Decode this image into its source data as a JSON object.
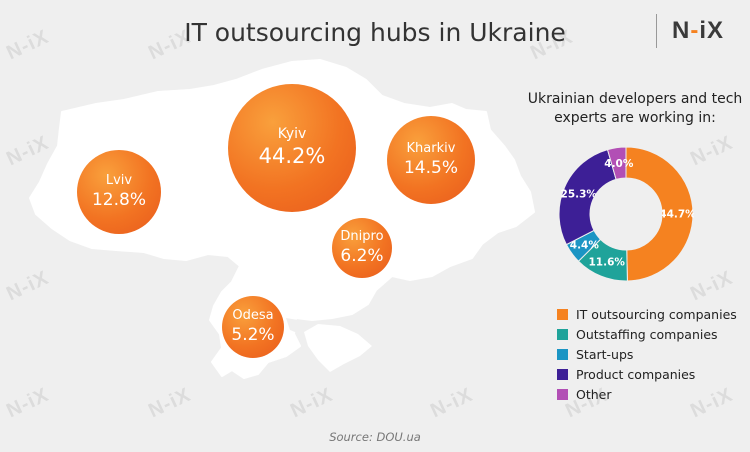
{
  "title": "IT outsourcing hubs in Ukraine",
  "logo": {
    "prefix": "N",
    "dash": "-",
    "suffix": "iX"
  },
  "watermark": "N-iX",
  "source": "Source: DOU.ua",
  "colors": {
    "bubble": "#f27322",
    "it_outsourcing": "#f58220",
    "outstaffing": "#1fa39a",
    "startups": "#1b95c4",
    "product": "#3d1f96",
    "other": "#b24fb5"
  },
  "chart_data": [
    {
      "type": "bubble",
      "title": "IT outsourcing hubs in Ukraine",
      "unit": "%",
      "points": [
        {
          "city": "Kyiv",
          "value": 44.2,
          "label": "44.2%"
        },
        {
          "city": "Kharkiv",
          "value": 14.5,
          "label": "14.5%"
        },
        {
          "city": "Lviv",
          "value": 12.8,
          "label": "12.8%"
        },
        {
          "city": "Dnipro",
          "value": 6.2,
          "label": "6.2%"
        },
        {
          "city": "Odesa",
          "value": 5.2,
          "label": "5.2%"
        }
      ]
    },
    {
      "type": "pie",
      "variant": "donut",
      "title": "Ukrainian developers and tech experts are working in:",
      "legend_placement": "bottom",
      "slices": [
        {
          "name": "IT outsourcing companies",
          "value": 44.7,
          "label": "44.7%",
          "color": "#f58220"
        },
        {
          "name": "Outstaffing companies",
          "value": 11.6,
          "label": "11.6%",
          "color": "#1fa39a"
        },
        {
          "name": "Start-ups",
          "value": 4.4,
          "label": "4.4%",
          "color": "#1b95c4"
        },
        {
          "name": "Product companies",
          "value": 25.3,
          "label": "25.3%",
          "color": "#3d1f96"
        },
        {
          "name": "Other",
          "value": 4.0,
          "label": "4.0%",
          "color": "#b24fb5"
        }
      ]
    }
  ]
}
